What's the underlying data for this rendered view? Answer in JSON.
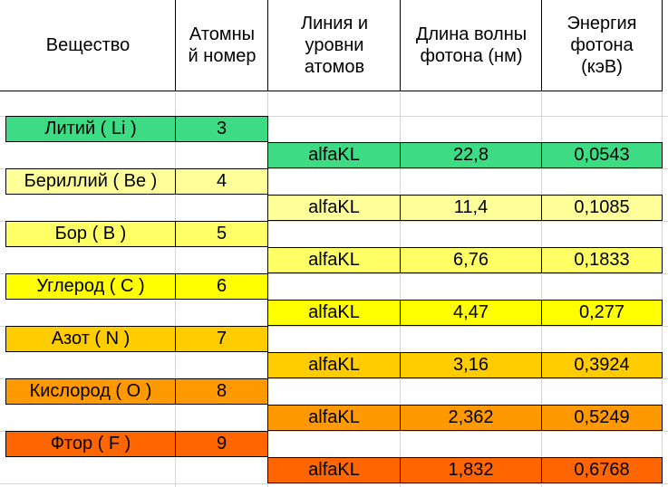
{
  "headers": {
    "substance": "Вещество",
    "atomic_number_l1": "Атомны",
    "atomic_number_l2": "й номер",
    "line_l1": "Линия и",
    "line_l2": "уровни",
    "line_l3": "атомов",
    "wavelength_l1": "Длина волны",
    "wavelength_l2": "фотона (нм)",
    "energy_l1": "Энергия",
    "energy_l2": "фотона",
    "energy_l3": "(кэВ)"
  },
  "elements": [
    {
      "name": "Литий ( Li )",
      "number": "3",
      "line": "alfaKL",
      "wavelength": "22,8",
      "energy": "0,0543",
      "color": "#3ddc84"
    },
    {
      "name": "Бериллий ( Be )",
      "number": "4",
      "line": "alfaKL",
      "wavelength": "11,4",
      "energy": "0,1085",
      "color": "#ffff99"
    },
    {
      "name": "Бор ( B )",
      "number": "5",
      "line": "alfaKL",
      "wavelength": "6,76",
      "energy": "0,1833",
      "color": "#ffff66"
    },
    {
      "name": "Углерод ( C )",
      "number": "6",
      "line": "alfaKL",
      "wavelength": "4,47",
      "energy": "0,277",
      "color": "#ffff00"
    },
    {
      "name": "Азот ( N )",
      "number": "7",
      "line": "alfaKL",
      "wavelength": "3,16",
      "energy": "0,3924",
      "color": "#ffcc00"
    },
    {
      "name": "Кислород ( O )",
      "number": "8",
      "line": "alfaKL",
      "wavelength": "2,362",
      "energy": "0,5249",
      "color": "#ff9900"
    },
    {
      "name": "Фтор ( F )",
      "number": "9",
      "line": "alfaKL",
      "wavelength": "1,832",
      "energy": "0,6768",
      "color": "#ff6600"
    }
  ]
}
